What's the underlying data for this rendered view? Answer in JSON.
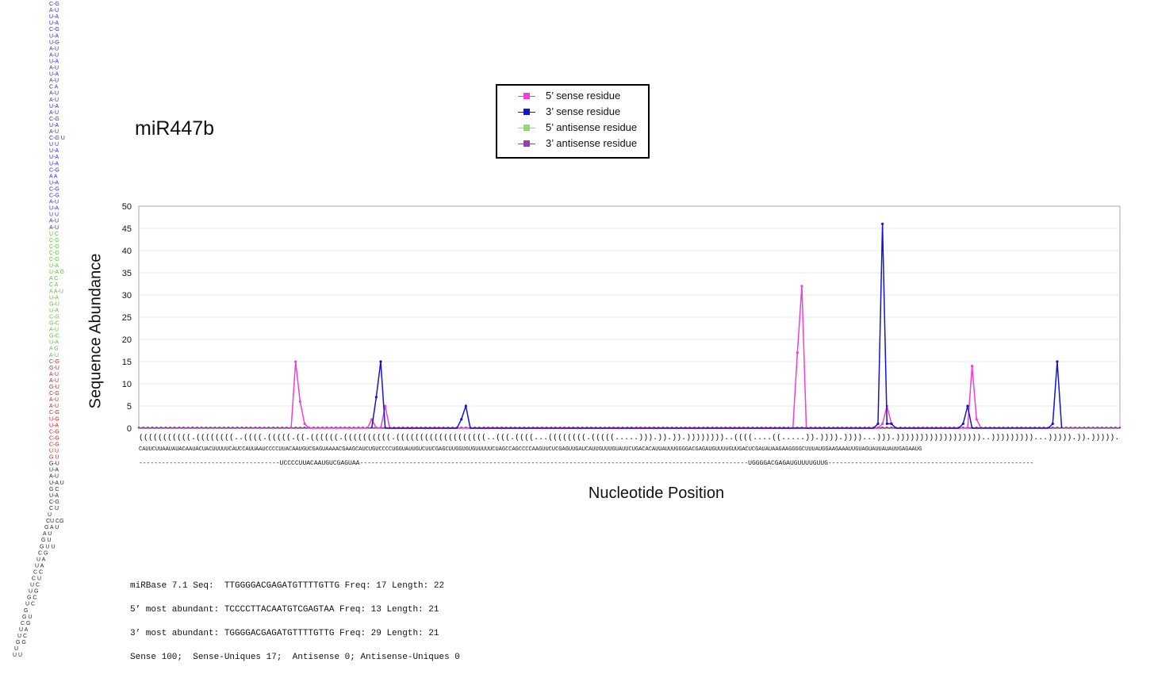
{
  "figure": {
    "title": "miR447b",
    "stats": [
      "miRBase 7.1 Seq:  TTGGGGACGAGATGTTTTGTTG Freq: 17 Length: 22",
      "5’ most abundant: TCCCCTTACAATGTCGAGTAA Freq: 13 Length: 21",
      "3’ most abundant: TGGGGACGAGATGTTTTGTTG Freq: 29 Length: 21",
      "Sense 100;  Sense-Uniques 17;  Antisense 0; Antisense-Uniques 0"
    ],
    "alignment": {
      "structure": "(((((((((((.((((((((..((((.(((((.((.((((((.((((((((((.(((((((((((((((((((..(((.((((...((((((((.(((((.....))).)).)).))))))))..((((....((.....)).)))).))))...))).))))))))))))))))))..)))))))))...))))).)).))))).)))).)))))..))))))))..))))))))))))))",
      "sequence": "CAUUCUUAAUAUACAAUACUACUUUUUCAUCCAUUAAUCCCCUUACAAUGUCGAGUAAAACGAAGCAUCUGUCCCCUGGUAUUGUCUUCGAGCUUGGUGUGUUUUUCUAGCCAGCCCCAAGUUCUCGAGUUGAUCAUUGUUUGUAUUCUGACACAUUAUUUGGGGACGAGAUGUUUUGUUGACUCGAUAUAAGAAGGGGCUUUAUGGAAGAAAUUGUAGUAUUAUAUUGAGAAUG",
      "mature_5p": "UCCCCUUACAAUGUCGAGUAA",
      "mature_3p": "UGGGGACGAGAUGUUUUGUUG"
    },
    "hairpin_lines": [
      "C-G",
      "A-U",
      "U-A",
      "U-A",
      "C-G",
      "U-A",
      "U-G",
      "A-U",
      "A-U",
      "U-A",
      "A-U",
      "U-A",
      "A-U",
      "C A",
      "A-U",
      "A-U",
      "U-A",
      "A-U",
      "C-G",
      "U-A",
      "A-U",
      "C-G U",
      "U U",
      "U-A",
      "U-A",
      "U-A",
      "C-G",
      "A A",
      "U-A",
      "C-G",
      "C-G",
      "A-U",
      "U-A",
      "U U",
      "A-U",
      "A-U",
      "U C",
      "C-G",
      "C-G",
      "C-G",
      "C-G",
      "U-A",
      "U-A G",
      "A C",
      "C A",
      "A A-U",
      "U-A",
      "G-U",
      "U-A",
      "C-G",
      "G-C",
      "A-U",
      "G-C",
      "U-A",
      "A G",
      "A-U",
      "C-G",
      "G-U",
      "A-U",
      "A-U",
      "G-U",
      "C-G",
      "A-U",
      "A-U",
      "C-G",
      "U-G",
      "U-A",
      "C-G",
      "C-G",
      "C-G",
      "U U",
      "G U",
      "G-U",
      "U-A",
      "A-U",
      "U-A U",
      "G C",
      "U-A",
      "C-G",
      "C U",
      "U",
      "CU CG",
      "G A U",
      "A U",
      "G U",
      "G U U",
      "C G",
      "U A",
      "U A",
      "C C",
      "C U",
      "U C",
      "U G",
      "G C",
      "U C",
      "G",
      "G U",
      "C G",
      "U A",
      "U C",
      "G G",
      "U",
      "U U",
      "G",
      "U U",
      "U C",
      "U"
    ]
  },
  "chart_data": {
    "type": "line",
    "title": "miR447b",
    "xlabel": "Nucleotide Position",
    "ylabel": "Sequence Abundance",
    "ylim": [
      0,
      50
    ],
    "yticks": [
      0,
      5,
      10,
      15,
      20,
      25,
      30,
      35,
      40,
      45,
      50
    ],
    "xlim": [
      1,
      220
    ],
    "grid": true,
    "legend": "top-center",
    "legend_entries": [
      {
        "name": "5’ sense residue",
        "color": "#f23ed2"
      },
      {
        "name": "3’ sense residue",
        "color": "#1414ce"
      },
      {
        "name": "5’ antisense residue",
        "color": "#8fd77a"
      },
      {
        "name": "3’ antisense residue",
        "color": "#9c3cad"
      }
    ],
    "series": [
      {
        "name": "5’ sense residue",
        "color": "#f23ed2",
        "baseline": 0,
        "points": [
          [
            35,
            0
          ],
          [
            36,
            15
          ],
          [
            37,
            6
          ],
          [
            38,
            1
          ],
          [
            39,
            0
          ],
          [
            52,
            0
          ],
          [
            53,
            2
          ],
          [
            54,
            0
          ],
          [
            55,
            0
          ],
          [
            56,
            5
          ],
          [
            57,
            0
          ],
          [
            147,
            0
          ],
          [
            148,
            17
          ],
          [
            149,
            32
          ],
          [
            150,
            0
          ],
          [
            166,
            0
          ],
          [
            167,
            1
          ],
          [
            168,
            5
          ],
          [
            169,
            1
          ],
          [
            170,
            0
          ],
          [
            186,
            0
          ],
          [
            187,
            14
          ],
          [
            188,
            2
          ],
          [
            189,
            0
          ]
        ]
      },
      {
        "name": "3’ sense residue",
        "color": "#1414ce",
        "baseline": 0,
        "points": [
          [
            53,
            0
          ],
          [
            54,
            7
          ],
          [
            55,
            15
          ],
          [
            56,
            0
          ],
          [
            72,
            0
          ],
          [
            73,
            2
          ],
          [
            74,
            5
          ],
          [
            75,
            0
          ],
          [
            165,
            0
          ],
          [
            166,
            1
          ],
          [
            167,
            46
          ],
          [
            168,
            1
          ],
          [
            169,
            1
          ],
          [
            170,
            0
          ],
          [
            184,
            0
          ],
          [
            185,
            1
          ],
          [
            186,
            5
          ],
          [
            187,
            0
          ],
          [
            204,
            0
          ],
          [
            205,
            1
          ],
          [
            206,
            15
          ],
          [
            207,
            0
          ]
        ]
      },
      {
        "name": "5’ antisense residue",
        "color": "#8fd77a",
        "baseline": 0,
        "points": []
      },
      {
        "name": "3’ antisense residue",
        "color": "#9c3cad",
        "baseline": 0,
        "points": []
      }
    ]
  }
}
